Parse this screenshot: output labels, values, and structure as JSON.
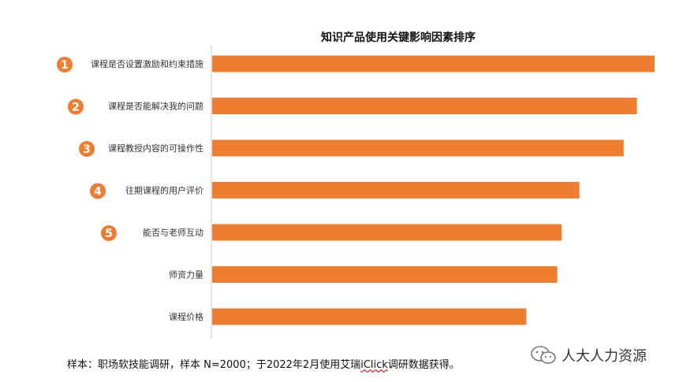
{
  "chart_data": {
    "type": "bar",
    "orientation": "horizontal",
    "title": "知识产品使用关键影响因素排序",
    "categories": [
      "课程是否设置激励和约束措施",
      "课程是否能解决我的问题",
      "课程教授内容的可操作性",
      "往期课程的用户评价",
      "能否与老师互动",
      "师资力量",
      "课程价格"
    ],
    "values": [
      100,
      96,
      93,
      83,
      79,
      78,
      71
    ],
    "rank_badges": [
      "1",
      "2",
      "3",
      "4",
      "5",
      "",
      ""
    ],
    "xlim": [
      0,
      100
    ],
    "bar_color": "#ED7D31",
    "badge_color": "#ED7D31",
    "axis_color": "#C8C8C8",
    "grid": false,
    "legend": "none"
  },
  "footnote": {
    "prefix": "样本：职场软技能调研，样本 N=2000；于2022年2月使用艾瑞",
    "brand": "iClick",
    "suffix": "调研数据获得。"
  },
  "watermark": {
    "text": "人大人力资源",
    "icon": "wechat-icon"
  }
}
